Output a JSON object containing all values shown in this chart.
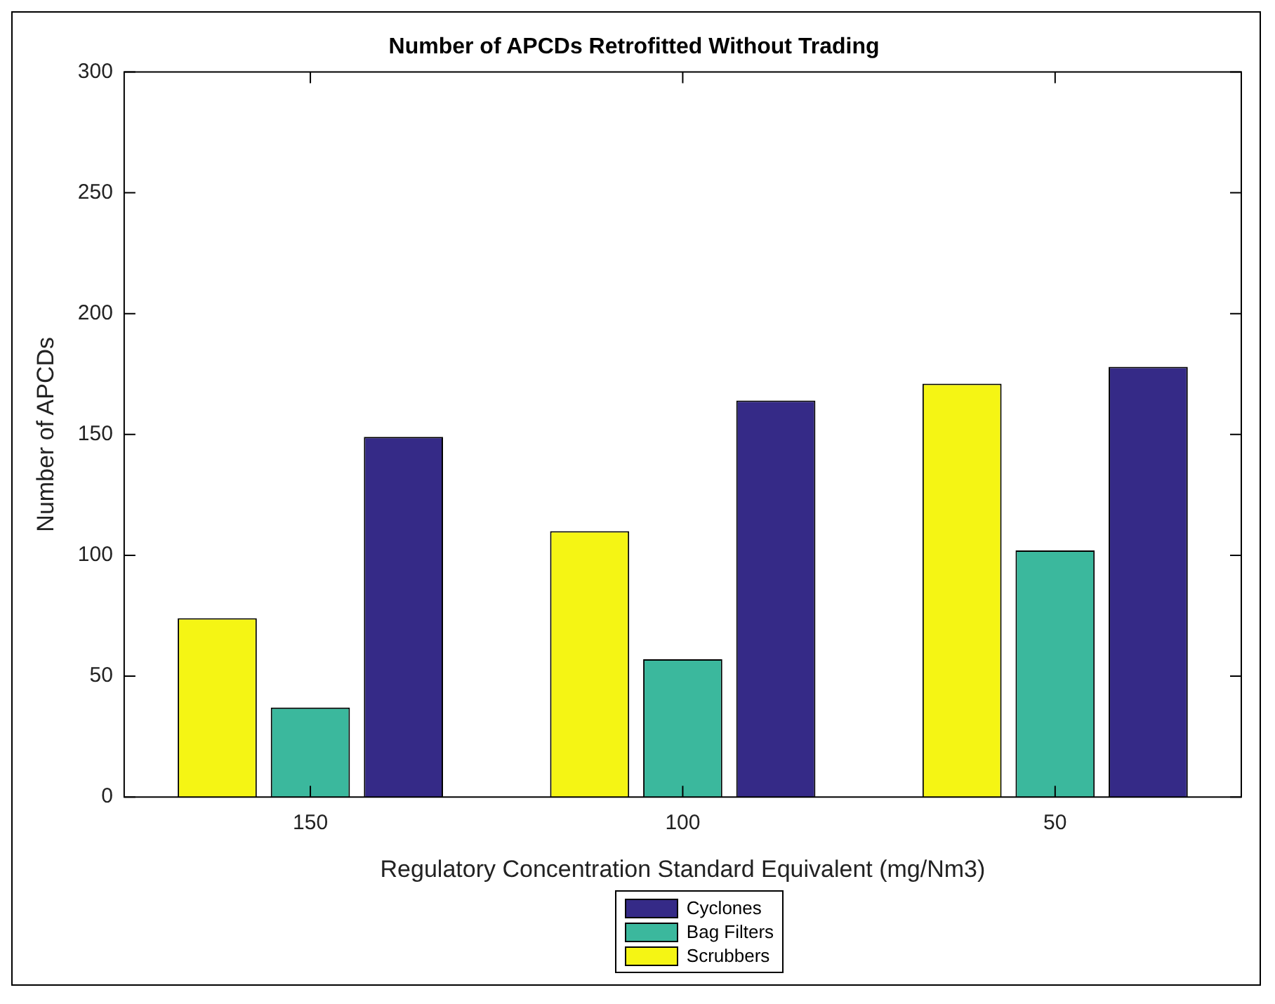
{
  "chart_data": {
    "type": "bar",
    "title": "Number of APCDs Retrofitted Without Trading",
    "xlabel": "Regulatory Concentration Standard Equivalent (mg/Nm3)",
    "ylabel": "Number of APCDs",
    "categories": [
      "150",
      "100",
      "50"
    ],
    "series": [
      {
        "name": "Scrubbers",
        "color": "#f5f514",
        "values": [
          74,
          110,
          171
        ]
      },
      {
        "name": "Bag Filters",
        "color": "#3bb89d",
        "values": [
          37,
          57,
          102
        ]
      },
      {
        "name": "Cyclones",
        "color": "#352a87",
        "values": [
          149,
          164,
          178
        ]
      }
    ],
    "ylim": [
      0,
      300
    ],
    "yticks": [
      0,
      50,
      100,
      150,
      200,
      250,
      300
    ],
    "grid": false,
    "legend": "bottom"
  }
}
